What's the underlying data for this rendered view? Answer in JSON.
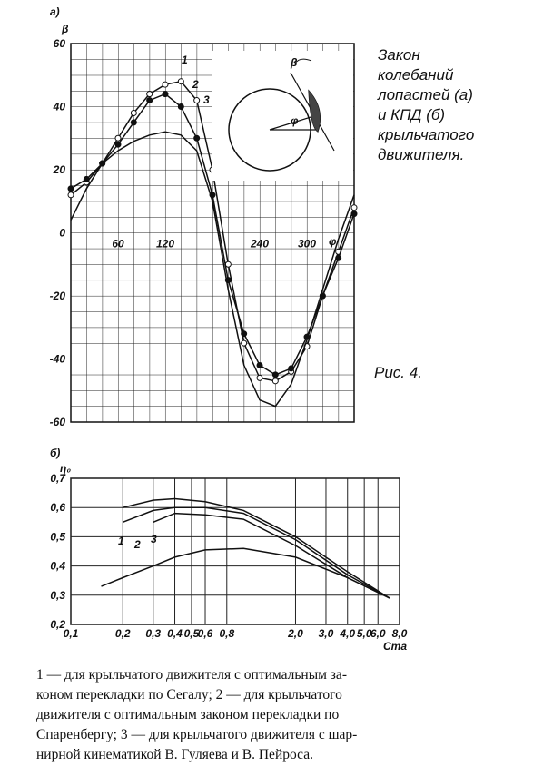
{
  "chart_data": [
    {
      "type": "line",
      "panel_label": "а)",
      "y_label": "β",
      "x_label": "φ",
      "xlim": [
        0,
        360
      ],
      "ylim": [
        -60,
        60
      ],
      "xticks": [
        60,
        120,
        240,
        300
      ],
      "yticks": [
        -60,
        -40,
        -20,
        0,
        20,
        40,
        60
      ],
      "x": [
        0,
        20,
        40,
        60,
        80,
        100,
        120,
        140,
        160,
        180,
        200,
        220,
        240,
        260,
        280,
        300,
        320,
        340,
        360
      ],
      "series": [
        {
          "name": "1",
          "color": "#111",
          "marker": "open",
          "values": [
            12,
            16,
            22,
            30,
            38,
            44,
            47,
            48,
            42,
            20,
            -10,
            -35,
            -46,
            -47,
            -44,
            -36,
            -20,
            -6,
            8
          ]
        },
        {
          "name": "2",
          "color": "#111",
          "marker": "filled",
          "values": [
            14,
            17,
            22,
            28,
            35,
            42,
            44,
            40,
            30,
            12,
            -15,
            -32,
            -42,
            -45,
            -43,
            -33,
            -20,
            -8,
            6
          ]
        },
        {
          "name": "3",
          "color": "#111",
          "marker": "none",
          "values": [
            4,
            14,
            22,
            26,
            29,
            31,
            32,
            31,
            26,
            10,
            -18,
            -42,
            -53,
            -55,
            -48,
            -34,
            -18,
            -2,
            12
          ]
        }
      ],
      "grid": true,
      "inset": {
        "beta": "β",
        "phi": "φ"
      }
    },
    {
      "type": "line",
      "panel_label": "б)",
      "y_label": "η₀",
      "x_label": "Cта",
      "log_x": true,
      "xlim": [
        0.1,
        8
      ],
      "ylim": [
        0.2,
        0.7
      ],
      "xticks": [
        {
          "value": 0.1,
          "label": "0,1"
        },
        {
          "value": 0.2,
          "label": "0,2"
        },
        {
          "value": 0.3,
          "label": "0,3"
        },
        {
          "value": 0.4,
          "label": "0,4"
        },
        {
          "value": 0.5,
          "label": "0,5"
        },
        {
          "value": 0.6,
          "label": "0,6"
        },
        {
          "value": 0.8,
          "label": "0,8"
        },
        {
          "value": 2,
          "label": "2,0"
        },
        {
          "value": 3,
          "label": "3,0"
        },
        {
          "value": 4,
          "label": "4,0"
        },
        {
          "value": 5,
          "label": "5,0"
        },
        {
          "value": 6,
          "label": "6,0"
        },
        {
          "value": 8,
          "label": "8,0"
        }
      ],
      "yticks": [
        {
          "value": 0.2,
          "label": "0,2"
        },
        {
          "value": 0.3,
          "label": "0,3"
        },
        {
          "value": 0.4,
          "label": "0,4"
        },
        {
          "value": 0.5,
          "label": "0,5"
        },
        {
          "value": 0.6,
          "label": "0,6"
        },
        {
          "value": 0.7,
          "label": "0,7"
        }
      ],
      "x": [
        0.15,
        0.2,
        0.3,
        0.4,
        0.6,
        1,
        2,
        4,
        7
      ],
      "series": [
        {
          "color": "#111",
          "values": [
            null,
            0.6,
            0.625,
            0.63,
            0.62,
            0.59,
            0.5,
            0.38,
            0.29
          ]
        },
        {
          "name": "1",
          "color": "#111",
          "values": [
            null,
            0.55,
            0.59,
            0.6,
            0.6,
            0.58,
            0.49,
            0.37,
            0.29
          ]
        },
        {
          "name": "2",
          "color": "#111",
          "values": [
            null,
            null,
            0.55,
            0.58,
            0.575,
            0.56,
            0.47,
            0.36,
            0.29
          ]
        },
        {
          "name": "3",
          "color": "#111",
          "values": [
            0.33,
            0.36,
            0.4,
            0.43,
            0.455,
            0.46,
            0.43,
            0.36,
            0.29
          ]
        }
      ],
      "grid": true
    }
  ],
  "side_text": [
    "Закон",
    "колебаний",
    "лопастей  (а)",
    "и   КПД   (б)",
    "крыльчатого",
    "движителя."
  ],
  "figure_label": "Рис. 4.",
  "caption": [
    "1 — для крыльчатого движителя с оптимальным за-",
    "коном перекладки по Сегалу; 2 — для крыльчатого",
    "движителя с оптимальным законом перекладки по",
    "Спаренбергу; 3 — для крыльчатого движителя с шар-",
    "нирной кинематикой В. Гуляева и В. Пейроса."
  ]
}
